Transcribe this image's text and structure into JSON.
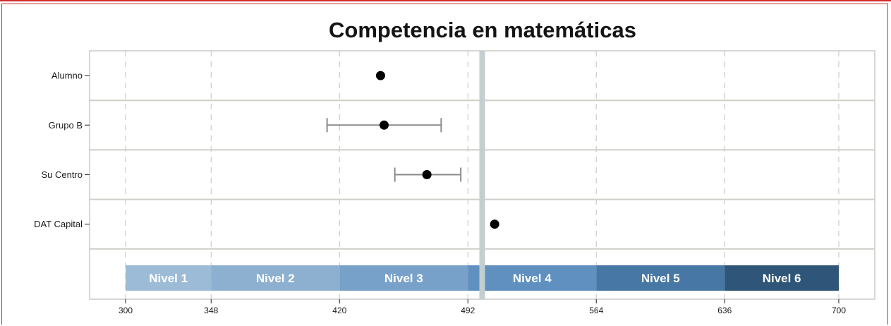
{
  "chart_data": {
    "type": "scatter",
    "title": "Competencia en matemáticas",
    "xlabel": "",
    "ylabel": "",
    "xlim": [
      300,
      700
    ],
    "x_ticks": [
      300,
      348,
      420,
      492,
      564,
      636,
      700
    ],
    "grid": "vertical dashed",
    "categories": [
      "Alumno",
      "Grupo B",
      "Su Centro",
      "DAT Capital"
    ],
    "points": [
      {
        "label": "Alumno",
        "value": 443,
        "err_low": null,
        "err_high": null
      },
      {
        "label": "Grupo B",
        "value": 445,
        "err_low": 413,
        "err_high": 477
      },
      {
        "label": "Su Centro",
        "value": 469,
        "err_low": 451,
        "err_high": 488
      },
      {
        "label": "DAT Capital",
        "value": 507,
        "err_low": null,
        "err_high": null
      }
    ],
    "reference_line": 500,
    "levels": [
      {
        "label": "Nivel 1",
        "from": 300,
        "to": 348,
        "color": "#9cbbd6"
      },
      {
        "label": "Nivel 2",
        "from": 348,
        "to": 420,
        "color": "#8db0d1"
      },
      {
        "label": "Nivel 3",
        "from": 420,
        "to": 492,
        "color": "#78a1c9"
      },
      {
        "label": "Nivel 4",
        "from": 492,
        "to": 564,
        "color": "#5f90c0"
      },
      {
        "label": "Nivel 5",
        "from": 564,
        "to": 636,
        "color": "#4777a4"
      },
      {
        "label": "Nivel 6",
        "from": 636,
        "to": 700,
        "color": "#2f5678"
      }
    ]
  }
}
